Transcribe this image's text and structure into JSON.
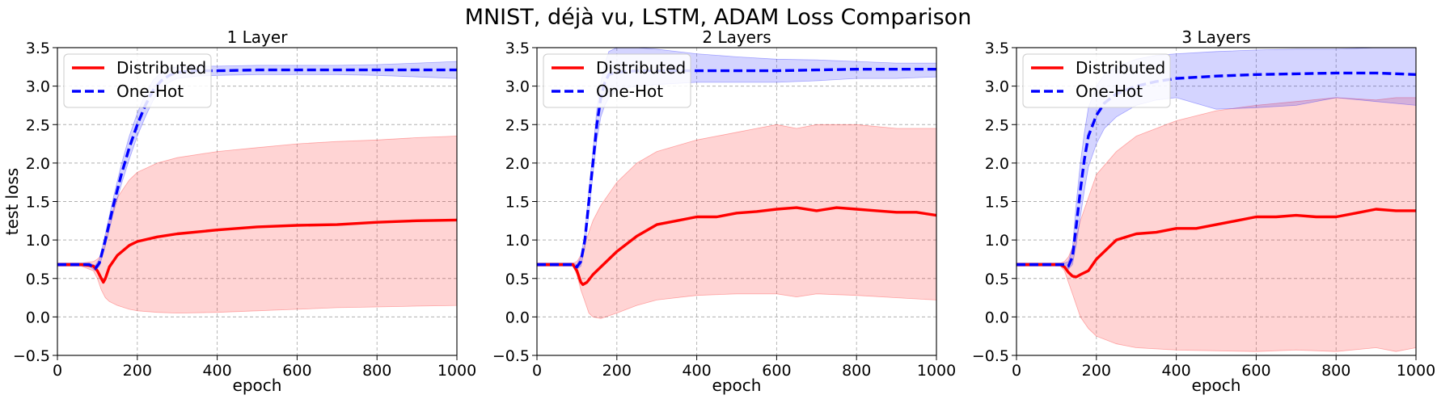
{
  "figure": {
    "title": "MNIST, déjà vu, LSTM, ADAM Loss Comparison",
    "colors": {
      "distributed": "#ff0000",
      "one_hot": "#0000ff",
      "distributed_band": "#ff0000",
      "one_hot_band": "#0000ff"
    }
  },
  "chart_data": [
    {
      "type": "line",
      "title": "1 Layer",
      "xlabel": "epoch",
      "ylabel": "test loss",
      "xlim": [
        0,
        1000
      ],
      "ylim": [
        -0.5,
        3.5
      ],
      "xticks": [
        0,
        200,
        400,
        600,
        800,
        1000
      ],
      "xtick_labels": [
        "0",
        "200",
        "400",
        "600",
        "800",
        "1000"
      ],
      "yticks": [
        -0.5,
        0.0,
        0.5,
        1.0,
        1.5,
        2.0,
        2.5,
        3.0,
        3.5
      ],
      "ytick_labels": [
        "−0.5",
        "0.0",
        "0.5",
        "1.0",
        "1.5",
        "2.0",
        "2.5",
        "3.0",
        "3.5"
      ],
      "grid": true,
      "legend": {
        "position": "top-left",
        "entries": [
          "Distributed",
          "One-Hot"
        ]
      },
      "series": [
        {
          "name": "Distributed",
          "style": "solid",
          "x": [
            0,
            60,
            90,
            100,
            110,
            115,
            120,
            130,
            150,
            180,
            200,
            250,
            300,
            400,
            500,
            600,
            700,
            800,
            900,
            1000
          ],
          "y": [
            0.68,
            0.68,
            0.66,
            0.6,
            0.5,
            0.45,
            0.5,
            0.65,
            0.8,
            0.93,
            0.98,
            1.04,
            1.08,
            1.13,
            1.17,
            1.19,
            1.2,
            1.23,
            1.25,
            1.26
          ],
          "band_x": [
            0,
            60,
            90,
            100,
            110,
            120,
            130,
            150,
            180,
            200,
            250,
            300,
            400,
            500,
            600,
            700,
            800,
            900,
            1000
          ],
          "band_lower": [
            0.66,
            0.66,
            0.6,
            0.5,
            0.35,
            0.25,
            0.2,
            0.15,
            0.1,
            0.08,
            0.06,
            0.05,
            0.06,
            0.08,
            0.1,
            0.12,
            0.13,
            0.14,
            0.15
          ],
          "band_upper": [
            0.7,
            0.7,
            0.72,
            0.75,
            0.8,
            1.0,
            1.25,
            1.55,
            1.78,
            1.88,
            2.0,
            2.07,
            2.15,
            2.2,
            2.25,
            2.28,
            2.3,
            2.33,
            2.35
          ]
        },
        {
          "name": "One-Hot",
          "style": "dashed",
          "x": [
            0,
            80,
            95,
            105,
            120,
            140,
            160,
            180,
            200,
            220,
            240,
            260,
            280,
            300,
            350,
            400,
            500,
            600,
            700,
            800,
            900,
            1000
          ],
          "y": [
            0.68,
            0.68,
            0.63,
            0.7,
            1.0,
            1.45,
            1.85,
            2.2,
            2.5,
            2.75,
            2.95,
            3.07,
            3.14,
            3.18,
            3.2,
            3.2,
            3.21,
            3.21,
            3.21,
            3.21,
            3.21,
            3.21
          ],
          "band_x": [
            0,
            80,
            95,
            105,
            120,
            140,
            160,
            180,
            200,
            220,
            240,
            260,
            280,
            300,
            350,
            400,
            500,
            600,
            700,
            800,
            900,
            1000
          ],
          "band_lower": [
            0.66,
            0.66,
            0.6,
            0.66,
            0.92,
            1.35,
            1.72,
            2.05,
            2.35,
            2.6,
            2.82,
            2.97,
            3.05,
            3.1,
            3.13,
            3.14,
            3.15,
            3.15,
            3.15,
            3.14,
            3.12,
            3.1
          ],
          "band_upper": [
            0.7,
            0.7,
            0.67,
            0.75,
            1.08,
            1.55,
            1.98,
            2.35,
            2.65,
            2.9,
            3.08,
            3.18,
            3.23,
            3.25,
            3.26,
            3.26,
            3.27,
            3.27,
            3.27,
            3.28,
            3.3,
            3.32
          ]
        }
      ]
    },
    {
      "type": "line",
      "title": "2 Layers",
      "xlabel": "epoch",
      "ylabel": "",
      "xlim": [
        0,
        1000
      ],
      "ylim": [
        -0.5,
        3.5
      ],
      "xticks": [
        0,
        200,
        400,
        600,
        800,
        1000
      ],
      "xtick_labels": [
        "0",
        "200",
        "400",
        "600",
        "800",
        "1000"
      ],
      "yticks": [
        -0.5,
        0.0,
        0.5,
        1.0,
        1.5,
        2.0,
        2.5,
        3.0,
        3.5
      ],
      "ytick_labels": [
        "−0.5",
        "0.0",
        "0.5",
        "1.0",
        "1.5",
        "2.0",
        "2.5",
        "3.0",
        "3.5"
      ],
      "grid": true,
      "legend": {
        "position": "top-left",
        "entries": [
          "Distributed",
          "One-Hot"
        ]
      },
      "series": [
        {
          "name": "Distributed",
          "style": "solid",
          "x": [
            0,
            90,
            100,
            110,
            115,
            125,
            140,
            160,
            200,
            250,
            300,
            350,
            400,
            450,
            500,
            550,
            600,
            650,
            700,
            750,
            800,
            850,
            900,
            950,
            1000
          ],
          "y": [
            0.68,
            0.68,
            0.6,
            0.45,
            0.42,
            0.45,
            0.55,
            0.65,
            0.85,
            1.05,
            1.2,
            1.25,
            1.3,
            1.3,
            1.35,
            1.37,
            1.4,
            1.42,
            1.38,
            1.42,
            1.4,
            1.38,
            1.36,
            1.36,
            1.32
          ],
          "band_x": [
            0,
            90,
            100,
            110,
            120,
            130,
            140,
            160,
            200,
            250,
            300,
            400,
            500,
            550,
            600,
            650,
            700,
            800,
            900,
            1000
          ],
          "band_lower": [
            0.66,
            0.66,
            0.55,
            0.35,
            0.2,
            0.05,
            0.0,
            -0.02,
            0.05,
            0.15,
            0.22,
            0.28,
            0.3,
            0.3,
            0.3,
            0.26,
            0.3,
            0.28,
            0.25,
            0.22
          ],
          "band_upper": [
            0.7,
            0.7,
            0.72,
            0.8,
            0.95,
            1.1,
            1.25,
            1.45,
            1.75,
            2.0,
            2.15,
            2.3,
            2.4,
            2.45,
            2.5,
            2.45,
            2.5,
            2.5,
            2.45,
            2.45
          ]
        },
        {
          "name": "One-Hot",
          "style": "dashed",
          "x": [
            0,
            90,
            100,
            110,
            120,
            130,
            140,
            150,
            160,
            170,
            180,
            200,
            250,
            300,
            400,
            500,
            600,
            700,
            800,
            900,
            1000
          ],
          "y": [
            0.68,
            0.68,
            0.65,
            0.72,
            1.0,
            1.5,
            2.0,
            2.5,
            2.85,
            3.05,
            3.15,
            3.18,
            3.2,
            3.2,
            3.2,
            3.2,
            3.2,
            3.21,
            3.22,
            3.22,
            3.22
          ],
          "band_x": [
            0,
            90,
            100,
            110,
            120,
            130,
            140,
            150,
            160,
            170,
            180,
            200,
            250,
            300,
            400,
            500,
            600,
            700,
            800,
            900,
            1000
          ],
          "band_lower": [
            0.66,
            0.66,
            0.62,
            0.66,
            0.9,
            1.35,
            1.85,
            2.3,
            2.6,
            2.75,
            2.85,
            2.95,
            3.0,
            3.02,
            3.05,
            3.05,
            3.05,
            3.07,
            3.1,
            3.1,
            3.12
          ],
          "band_upper": [
            0.7,
            0.7,
            0.68,
            0.78,
            1.1,
            1.65,
            2.15,
            2.7,
            3.05,
            3.3,
            3.45,
            3.5,
            3.5,
            3.48,
            3.42,
            3.38,
            3.35,
            3.34,
            3.32,
            3.3,
            3.3
          ]
        }
      ]
    },
    {
      "type": "line",
      "title": "3 Layers",
      "xlabel": "epoch",
      "ylabel": "",
      "xlim": [
        0,
        1000
      ],
      "ylim": [
        -0.5,
        3.5
      ],
      "xticks": [
        0,
        200,
        400,
        600,
        800,
        1000
      ],
      "xtick_labels": [
        "0",
        "200",
        "400",
        "600",
        "800",
        "1000"
      ],
      "yticks": [
        -0.5,
        0.0,
        0.5,
        1.0,
        1.5,
        2.0,
        2.5,
        3.0,
        3.5
      ],
      "ytick_labels": [
        "−0.5",
        "0.0",
        "0.5",
        "1.0",
        "1.5",
        "2.0",
        "2.5",
        "3.0",
        "3.5"
      ],
      "grid": true,
      "legend": {
        "position": "top-left",
        "entries": [
          "Distributed",
          "One-Hot"
        ]
      },
      "series": [
        {
          "name": "Distributed",
          "style": "solid",
          "x": [
            0,
            110,
            120,
            130,
            140,
            150,
            160,
            180,
            200,
            250,
            300,
            350,
            400,
            450,
            500,
            550,
            600,
            650,
            700,
            750,
            800,
            850,
            900,
            950,
            1000
          ],
          "y": [
            0.68,
            0.68,
            0.65,
            0.58,
            0.53,
            0.52,
            0.55,
            0.6,
            0.75,
            1.0,
            1.08,
            1.1,
            1.15,
            1.15,
            1.2,
            1.25,
            1.3,
            1.3,
            1.32,
            1.3,
            1.3,
            1.35,
            1.4,
            1.38,
            1.38
          ],
          "band_x": [
            0,
            110,
            120,
            130,
            140,
            150,
            160,
            180,
            200,
            250,
            300,
            400,
            500,
            600,
            700,
            800,
            900,
            950,
            1000
          ],
          "band_lower": [
            0.66,
            0.66,
            0.6,
            0.45,
            0.3,
            0.15,
            0.0,
            -0.15,
            -0.25,
            -0.35,
            -0.4,
            -0.43,
            -0.44,
            -0.45,
            -0.43,
            -0.45,
            -0.4,
            -0.45,
            -0.4
          ],
          "band_upper": [
            0.7,
            0.7,
            0.72,
            0.78,
            0.9,
            1.05,
            1.25,
            1.55,
            1.85,
            2.15,
            2.35,
            2.55,
            2.68,
            2.75,
            2.8,
            2.85,
            2.82,
            2.85,
            2.85
          ]
        },
        {
          "name": "One-Hot",
          "style": "dashed",
          "x": [
            0,
            120,
            130,
            140,
            150,
            160,
            170,
            180,
            200,
            220,
            250,
            300,
            350,
            400,
            500,
            600,
            700,
            800,
            900,
            1000
          ],
          "y": [
            0.68,
            0.68,
            0.66,
            0.78,
            1.2,
            1.65,
            2.05,
            2.35,
            2.62,
            2.78,
            2.9,
            3.0,
            3.06,
            3.1,
            3.13,
            3.15,
            3.16,
            3.17,
            3.17,
            3.15
          ],
          "band_x": [
            0,
            120,
            130,
            140,
            150,
            160,
            170,
            180,
            200,
            220,
            250,
            300,
            350,
            400,
            500,
            600,
            700,
            800,
            900,
            1000
          ],
          "band_lower": [
            0.66,
            0.66,
            0.62,
            0.68,
            0.95,
            1.3,
            1.65,
            1.95,
            2.25,
            2.45,
            2.6,
            2.75,
            2.82,
            2.85,
            2.7,
            2.72,
            2.75,
            2.85,
            2.8,
            2.75
          ],
          "band_upper": [
            0.7,
            0.7,
            0.72,
            0.9,
            1.5,
            2.0,
            2.4,
            2.72,
            3.0,
            3.15,
            3.25,
            3.35,
            3.4,
            3.42,
            3.45,
            3.47,
            3.48,
            3.48,
            3.5,
            3.5
          ]
        }
      ]
    }
  ]
}
